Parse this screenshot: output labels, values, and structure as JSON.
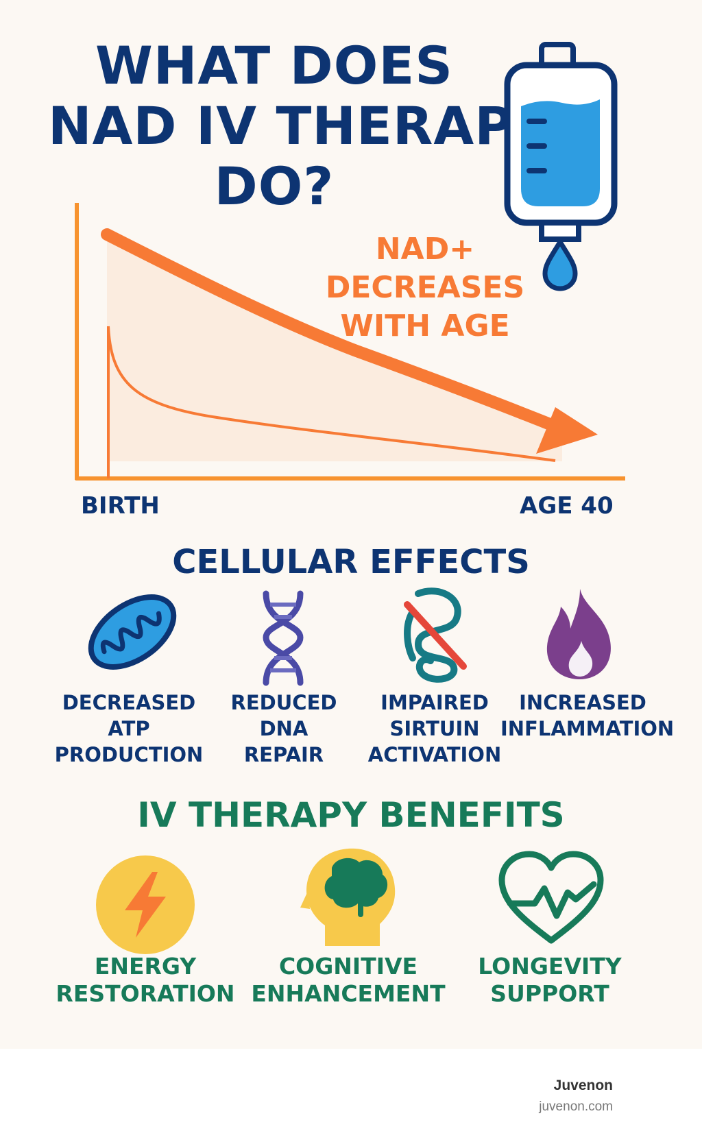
{
  "title": {
    "line1": "WHAT DOES",
    "line2": "NAD IV THERAPY",
    "line3": "DO?"
  },
  "icons": {
    "header": "iv-bag-icon"
  },
  "chart": {
    "annotation": {
      "line1": "NAD+",
      "line2": "DECREASES",
      "line3": "WITH AGE"
    },
    "x_start_label": "BIRTH",
    "x_end_label": "AGE 40"
  },
  "cellular": {
    "heading": "CELLULAR EFFECTS",
    "items": [
      {
        "icon": "mitochondria-icon",
        "line1": "DECREASED",
        "line2": "ATP",
        "line3": "PRODUCTION"
      },
      {
        "icon": "dna-icon",
        "line1": "REDUCED",
        "line2": "DNA",
        "line3": "REPAIR"
      },
      {
        "icon": "sirtuin-blocked-icon",
        "line1": "IMPAIRED",
        "line2": "SIRTUIN",
        "line3": "ACTIVATION"
      },
      {
        "icon": "flame-icon",
        "line1": "INCREASED",
        "line2": "INFLAMMATION"
      }
    ]
  },
  "benefits": {
    "heading": "IV THERAPY BENEFITS",
    "items": [
      {
        "icon": "lightning-icon",
        "line1": "ENERGY",
        "line2": "RESTORATION"
      },
      {
        "icon": "brain-head-icon",
        "line1": "COGNITIVE",
        "line2": "ENHANCEMENT"
      },
      {
        "icon": "heart-pulse-icon",
        "line1": "LONGEVITY",
        "line2": "SUPPORT"
      }
    ]
  },
  "colors": {
    "navy": "#0d3472",
    "orange": "#f77a35",
    "green": "#177a59",
    "blue": "#2e9de1"
  },
  "footer": {
    "brand": "Juvenon",
    "url": "juvenon.com"
  }
}
